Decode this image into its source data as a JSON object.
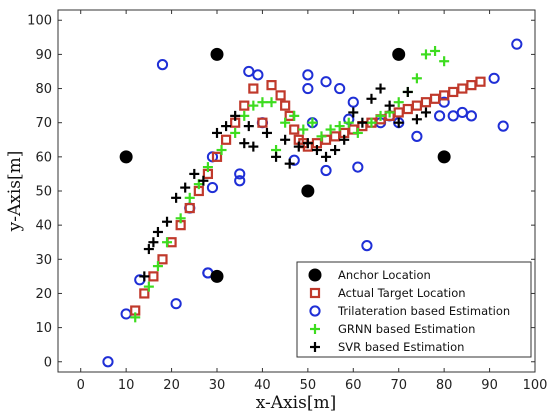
{
  "chart_data": {
    "type": "scatter",
    "title": "",
    "xlabel": "x-Axis[m]",
    "ylabel": "y-Axis[m]",
    "xlim": [
      -5,
      100
    ],
    "ylim": [
      -3,
      103
    ],
    "xticks": [
      0,
      10,
      20,
      30,
      40,
      50,
      60,
      70,
      80,
      90,
      100
    ],
    "yticks": [
      0,
      10,
      20,
      30,
      40,
      50,
      60,
      70,
      80,
      90,
      100
    ],
    "xtick_labels": [
      "0",
      "10",
      "20",
      "30",
      "40",
      "50",
      "60",
      "70",
      "80",
      "90",
      "100"
    ],
    "ytick_labels": [
      "0",
      "10",
      "20",
      "30",
      "40",
      "50",
      "60",
      "70",
      "80",
      "90",
      "100"
    ],
    "grid": false,
    "legend_position": "bottom-right",
    "series": [
      {
        "name": "Anchor Location",
        "marker": "filled-circle",
        "color": "#000000",
        "x": [
          10,
          30,
          70,
          30,
          50,
          80
        ],
        "y": [
          60,
          90,
          90,
          25,
          50,
          60
        ]
      },
      {
        "name": "Actual Target Location",
        "marker": "open-square",
        "color": "#c0392b",
        "x": [
          12,
          14,
          16,
          18,
          20,
          22,
          24,
          26,
          28,
          30,
          32,
          34,
          36,
          38,
          40,
          42,
          44,
          45,
          46,
          47,
          48,
          49,
          50,
          52,
          54,
          56,
          58,
          60,
          62,
          64,
          66,
          68,
          70,
          72,
          74,
          76,
          78,
          80,
          82,
          84,
          86,
          88
        ],
        "y": [
          15,
          20,
          25,
          30,
          35,
          40,
          45,
          50,
          55,
          60,
          65,
          70,
          75,
          80,
          70,
          81,
          78,
          75,
          72,
          68,
          65,
          64,
          63,
          64,
          65,
          66,
          67,
          68,
          69,
          70,
          71,
          72,
          73,
          74,
          75,
          76,
          77,
          78,
          79,
          80,
          81,
          82
        ]
      },
      {
        "name": "Trilateration based Estimation",
        "marker": "open-circle",
        "color": "#1f2fd6",
        "x": [
          6,
          10,
          13,
          18,
          21,
          24,
          28,
          29,
          29,
          35,
          35,
          37,
          39,
          40,
          47,
          50,
          50,
          51,
          54,
          54,
          57,
          59,
          60,
          61,
          63,
          66,
          68,
          70,
          74,
          79,
          80,
          82,
          84,
          86,
          91,
          93,
          96,
          30,
          28
        ],
        "y": [
          0,
          14,
          24,
          87,
          17,
          45,
          26,
          51,
          60,
          55,
          53,
          85,
          84,
          70,
          59,
          80,
          84,
          70,
          56,
          82,
          80,
          71,
          76,
          57,
          34,
          70,
          72,
          70,
          66,
          72,
          76,
          72,
          73,
          72,
          83,
          69,
          93,
          25,
          26
        ]
      },
      {
        "name": "GRNN based Estimation",
        "marker": "plus",
        "color": "#3ddc1f",
        "x": [
          12,
          15,
          17,
          19,
          22,
          24,
          26,
          28,
          31,
          34,
          36,
          38,
          40,
          42,
          43,
          45,
          47,
          49,
          51,
          53,
          55,
          57,
          59,
          61,
          64,
          66,
          68,
          70,
          72,
          74,
          76,
          78,
          80
        ],
        "y": [
          13,
          22,
          28,
          35,
          42,
          48,
          52,
          57,
          62,
          67,
          72,
          75,
          76,
          76,
          62,
          70,
          72,
          68,
          70,
          66,
          68,
          69,
          70,
          67,
          70,
          72,
          73,
          76,
          79,
          83,
          90,
          91,
          88
        ]
      },
      {
        "name": "SVR based Estimation",
        "marker": "plus",
        "color": "#000000",
        "x": [
          14,
          15,
          16,
          17,
          19,
          21,
          23,
          25,
          27,
          30,
          32,
          34,
          36,
          37,
          38,
          41,
          43,
          45,
          46,
          48,
          50,
          52,
          54,
          56,
          58,
          60,
          62,
          64,
          66,
          68,
          70,
          72,
          74,
          76
        ],
        "y": [
          25,
          33,
          35,
          38,
          41,
          48,
          51,
          55,
          53,
          67,
          69,
          72,
          64,
          69,
          63,
          67,
          60,
          65,
          58,
          63,
          64,
          62,
          60,
          62,
          65,
          73,
          70,
          77,
          80,
          75,
          70,
          79,
          71,
          73
        ]
      }
    ]
  }
}
